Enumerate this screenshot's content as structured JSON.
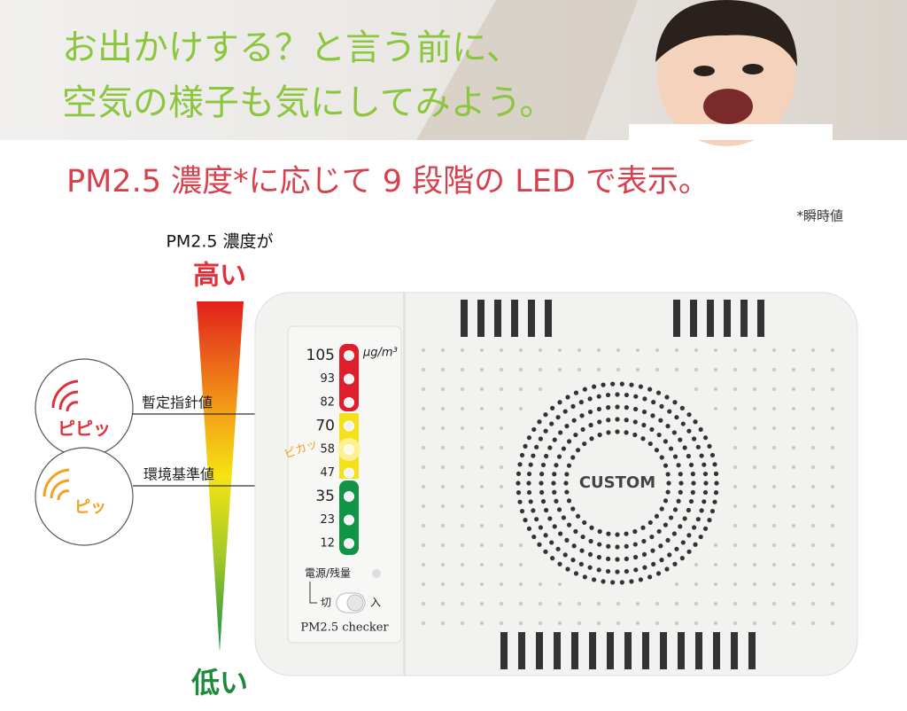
{
  "header": {
    "line1": "お出かけする？と言う前に、",
    "line2": "空気の様子も気にしてみよう。"
  },
  "headline": "PM2.5 濃度*に応じて 9 段階の LED で表示。",
  "note": "*瞬時値",
  "scale": {
    "caption": "PM2.5 濃度が",
    "high": "高い",
    "low": "低い"
  },
  "alerts": [
    {
      "sound": "ピピッ",
      "label": "暫定指針値"
    },
    {
      "sound": "ピッ",
      "label": "環境基準値"
    }
  ],
  "device": {
    "led_levels": [
      105,
      93,
      82,
      70,
      58,
      47,
      35,
      23,
      12
    ],
    "unit": "μg/m³",
    "flash": "ピカッ",
    "power": "電源/残量",
    "off": "切",
    "on": "入",
    "model": "PM2.5 checker",
    "brand": "CUSTOM"
  }
}
